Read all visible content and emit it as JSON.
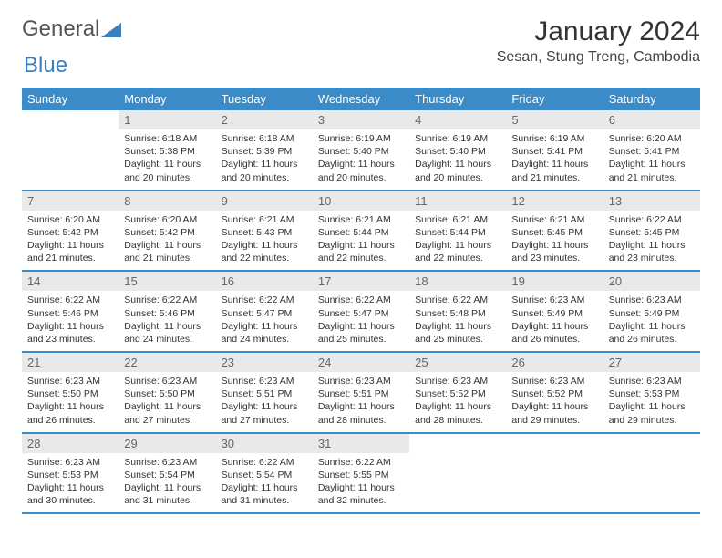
{
  "logo": {
    "text1": "General",
    "text2": "Blue"
  },
  "title": "January 2024",
  "location": "Sesan, Stung Treng, Cambodia",
  "colors": {
    "header_bg": "#3b8bc9",
    "header_text": "#ffffff",
    "daynum_bg": "#e9e9e9",
    "daynum_text": "#666666",
    "row_border": "#3b8bc9",
    "body_text": "#333333",
    "logo_blue": "#3b7fbf"
  },
  "day_names": [
    "Sunday",
    "Monday",
    "Tuesday",
    "Wednesday",
    "Thursday",
    "Friday",
    "Saturday"
  ],
  "weeks": [
    [
      null,
      {
        "d": "1",
        "sr": "6:18 AM",
        "ss": "5:38 PM",
        "dl": "11 hours and 20 minutes."
      },
      {
        "d": "2",
        "sr": "6:18 AM",
        "ss": "5:39 PM",
        "dl": "11 hours and 20 minutes."
      },
      {
        "d": "3",
        "sr": "6:19 AM",
        "ss": "5:40 PM",
        "dl": "11 hours and 20 minutes."
      },
      {
        "d": "4",
        "sr": "6:19 AM",
        "ss": "5:40 PM",
        "dl": "11 hours and 20 minutes."
      },
      {
        "d": "5",
        "sr": "6:19 AM",
        "ss": "5:41 PM",
        "dl": "11 hours and 21 minutes."
      },
      {
        "d": "6",
        "sr": "6:20 AM",
        "ss": "5:41 PM",
        "dl": "11 hours and 21 minutes."
      }
    ],
    [
      {
        "d": "7",
        "sr": "6:20 AM",
        "ss": "5:42 PM",
        "dl": "11 hours and 21 minutes."
      },
      {
        "d": "8",
        "sr": "6:20 AM",
        "ss": "5:42 PM",
        "dl": "11 hours and 21 minutes."
      },
      {
        "d": "9",
        "sr": "6:21 AM",
        "ss": "5:43 PM",
        "dl": "11 hours and 22 minutes."
      },
      {
        "d": "10",
        "sr": "6:21 AM",
        "ss": "5:44 PM",
        "dl": "11 hours and 22 minutes."
      },
      {
        "d": "11",
        "sr": "6:21 AM",
        "ss": "5:44 PM",
        "dl": "11 hours and 22 minutes."
      },
      {
        "d": "12",
        "sr": "6:21 AM",
        "ss": "5:45 PM",
        "dl": "11 hours and 23 minutes."
      },
      {
        "d": "13",
        "sr": "6:22 AM",
        "ss": "5:45 PM",
        "dl": "11 hours and 23 minutes."
      }
    ],
    [
      {
        "d": "14",
        "sr": "6:22 AM",
        "ss": "5:46 PM",
        "dl": "11 hours and 23 minutes."
      },
      {
        "d": "15",
        "sr": "6:22 AM",
        "ss": "5:46 PM",
        "dl": "11 hours and 24 minutes."
      },
      {
        "d": "16",
        "sr": "6:22 AM",
        "ss": "5:47 PM",
        "dl": "11 hours and 24 minutes."
      },
      {
        "d": "17",
        "sr": "6:22 AM",
        "ss": "5:47 PM",
        "dl": "11 hours and 25 minutes."
      },
      {
        "d": "18",
        "sr": "6:22 AM",
        "ss": "5:48 PM",
        "dl": "11 hours and 25 minutes."
      },
      {
        "d": "19",
        "sr": "6:23 AM",
        "ss": "5:49 PM",
        "dl": "11 hours and 26 minutes."
      },
      {
        "d": "20",
        "sr": "6:23 AM",
        "ss": "5:49 PM",
        "dl": "11 hours and 26 minutes."
      }
    ],
    [
      {
        "d": "21",
        "sr": "6:23 AM",
        "ss": "5:50 PM",
        "dl": "11 hours and 26 minutes."
      },
      {
        "d": "22",
        "sr": "6:23 AM",
        "ss": "5:50 PM",
        "dl": "11 hours and 27 minutes."
      },
      {
        "d": "23",
        "sr": "6:23 AM",
        "ss": "5:51 PM",
        "dl": "11 hours and 27 minutes."
      },
      {
        "d": "24",
        "sr": "6:23 AM",
        "ss": "5:51 PM",
        "dl": "11 hours and 28 minutes."
      },
      {
        "d": "25",
        "sr": "6:23 AM",
        "ss": "5:52 PM",
        "dl": "11 hours and 28 minutes."
      },
      {
        "d": "26",
        "sr": "6:23 AM",
        "ss": "5:52 PM",
        "dl": "11 hours and 29 minutes."
      },
      {
        "d": "27",
        "sr": "6:23 AM",
        "ss": "5:53 PM",
        "dl": "11 hours and 29 minutes."
      }
    ],
    [
      {
        "d": "28",
        "sr": "6:23 AM",
        "ss": "5:53 PM",
        "dl": "11 hours and 30 minutes."
      },
      {
        "d": "29",
        "sr": "6:23 AM",
        "ss": "5:54 PM",
        "dl": "11 hours and 31 minutes."
      },
      {
        "d": "30",
        "sr": "6:22 AM",
        "ss": "5:54 PM",
        "dl": "11 hours and 31 minutes."
      },
      {
        "d": "31",
        "sr": "6:22 AM",
        "ss": "5:55 PM",
        "dl": "11 hours and 32 minutes."
      },
      null,
      null,
      null
    ]
  ],
  "labels": {
    "sunrise": "Sunrise:",
    "sunset": "Sunset:",
    "daylight": "Daylight:"
  }
}
